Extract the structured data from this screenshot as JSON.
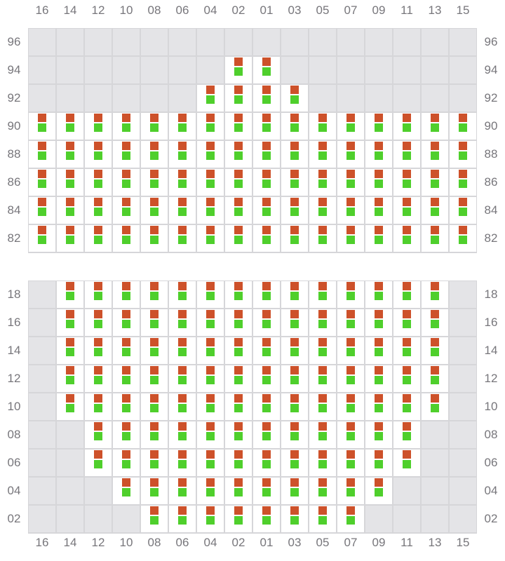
{
  "columns": [
    "16",
    "14",
    "12",
    "10",
    "08",
    "06",
    "04",
    "02",
    "01",
    "03",
    "05",
    "07",
    "09",
    "11",
    "13",
    "15"
  ],
  "colors": {
    "available_top": "#cd512a",
    "available_bottom": "#4fcf2c",
    "unavailable": "#e4e4e7",
    "grid_line": "#d6d6d9"
  },
  "sections": [
    {
      "rows": [
        {
          "label": "96",
          "available": []
        },
        {
          "label": "94",
          "available": [
            "02",
            "01"
          ]
        },
        {
          "label": "92",
          "available": [
            "04",
            "02",
            "01",
            "03"
          ]
        },
        {
          "label": "90",
          "available": [
            "16",
            "14",
            "12",
            "10",
            "08",
            "06",
            "04",
            "02",
            "01",
            "03",
            "05",
            "07",
            "09",
            "11",
            "13",
            "15"
          ]
        },
        {
          "label": "88",
          "available": [
            "16",
            "14",
            "12",
            "10",
            "08",
            "06",
            "04",
            "02",
            "01",
            "03",
            "05",
            "07",
            "09",
            "11",
            "13",
            "15"
          ]
        },
        {
          "label": "86",
          "available": [
            "16",
            "14",
            "12",
            "10",
            "08",
            "06",
            "04",
            "02",
            "01",
            "03",
            "05",
            "07",
            "09",
            "11",
            "13",
            "15"
          ]
        },
        {
          "label": "84",
          "available": [
            "16",
            "14",
            "12",
            "10",
            "08",
            "06",
            "04",
            "02",
            "01",
            "03",
            "05",
            "07",
            "09",
            "11",
            "13",
            "15"
          ]
        },
        {
          "label": "82",
          "available": [
            "16",
            "14",
            "12",
            "10",
            "08",
            "06",
            "04",
            "02",
            "01",
            "03",
            "05",
            "07",
            "09",
            "11",
            "13",
            "15"
          ]
        }
      ]
    },
    {
      "rows": [
        {
          "label": "18",
          "available": [
            "14",
            "12",
            "10",
            "08",
            "06",
            "04",
            "02",
            "01",
            "03",
            "05",
            "07",
            "09",
            "11",
            "13"
          ]
        },
        {
          "label": "16",
          "available": [
            "14",
            "12",
            "10",
            "08",
            "06",
            "04",
            "02",
            "01",
            "03",
            "05",
            "07",
            "09",
            "11",
            "13"
          ]
        },
        {
          "label": "14",
          "available": [
            "14",
            "12",
            "10",
            "08",
            "06",
            "04",
            "02",
            "01",
            "03",
            "05",
            "07",
            "09",
            "11",
            "13"
          ]
        },
        {
          "label": "12",
          "available": [
            "14",
            "12",
            "10",
            "08",
            "06",
            "04",
            "02",
            "01",
            "03",
            "05",
            "07",
            "09",
            "11",
            "13"
          ]
        },
        {
          "label": "10",
          "available": [
            "14",
            "12",
            "10",
            "08",
            "06",
            "04",
            "02",
            "01",
            "03",
            "05",
            "07",
            "09",
            "11",
            "13"
          ]
        },
        {
          "label": "08",
          "available": [
            "12",
            "10",
            "08",
            "06",
            "04",
            "02",
            "01",
            "03",
            "05",
            "07",
            "09",
            "11"
          ]
        },
        {
          "label": "06",
          "available": [
            "12",
            "10",
            "08",
            "06",
            "04",
            "02",
            "01",
            "03",
            "05",
            "07",
            "09",
            "11"
          ]
        },
        {
          "label": "04",
          "available": [
            "10",
            "08",
            "06",
            "04",
            "02",
            "01",
            "03",
            "05",
            "07",
            "09"
          ]
        },
        {
          "label": "02",
          "available": [
            "08",
            "06",
            "04",
            "02",
            "01",
            "03",
            "05",
            "07"
          ]
        }
      ]
    }
  ]
}
